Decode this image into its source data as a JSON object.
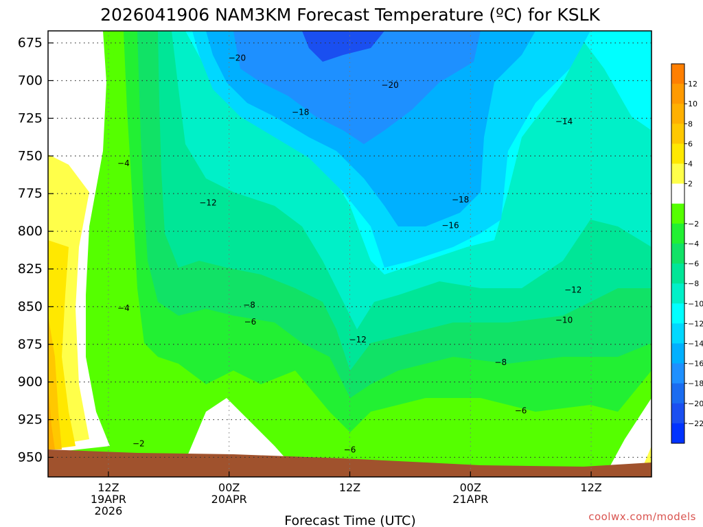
{
  "chart_data": {
    "type": "heatmap",
    "title": "2026041906 NAM3KM Forecast Temperature (ºC) for KSLK",
    "xlabel": "Forecast Time (UTC)",
    "ylabel": "",
    "y_axis": {
      "ticks": [
        "675",
        "700",
        "725",
        "750",
        "775",
        "800",
        "825",
        "850",
        "875",
        "900",
        "925",
        "950"
      ],
      "range": [
        963,
        667
      ],
      "inverted": true
    },
    "x_axis": {
      "ticks": [
        {
          "hour": 6,
          "lines": [
            "12Z",
            "19APR",
            "2026"
          ]
        },
        {
          "hour": 18,
          "lines": [
            "00Z",
            "20APR"
          ]
        },
        {
          "hour": 30,
          "lines": [
            "12Z"
          ]
        },
        {
          "hour": 42,
          "lines": [
            "00Z",
            "21APR"
          ]
        },
        {
          "hour": 54,
          "lines": [
            "12Z"
          ]
        }
      ],
      "range_hours": [
        0,
        60
      ]
    },
    "grid": true,
    "colorbar": {
      "labels": [
        "12",
        "10",
        "8",
        "6",
        "4",
        "2",
        "−2",
        "−4",
        "−6",
        "−8",
        "−10",
        "−12",
        "−14",
        "−16",
        "−18",
        "−20",
        "−22"
      ],
      "colors": [
        "#ff7f00",
        "#ff9a00",
        "#ffb000",
        "#ffc800",
        "#ffe800",
        "#ffff4a",
        "#ffffff",
        "#55ff00",
        "#22f033",
        "#11e266",
        "#00e697",
        "#00f0c8",
        "#00ffff",
        "#00d8ff",
        "#00b0ff",
        "#1e90ff",
        "#1a6cf0",
        "#1a4ff0",
        "#0033ff"
      ]
    },
    "contour_labels": [
      {
        "text": "−20",
        "hour": 18.8,
        "p": 685
      },
      {
        "text": "−20",
        "hour": 34.0,
        "p": 703
      },
      {
        "text": "−18",
        "hour": 25.1,
        "p": 721
      },
      {
        "text": "−18",
        "hour": 41.0,
        "p": 779
      },
      {
        "text": "−16",
        "hour": 40.0,
        "p": 796
      },
      {
        "text": "−14",
        "hour": 51.3,
        "p": 727
      },
      {
        "text": "−12",
        "hour": 15.9,
        "p": 781
      },
      {
        "text": "−12",
        "hour": 52.2,
        "p": 839
      },
      {
        "text": "−12",
        "hour": 30.8,
        "p": 872
      },
      {
        "text": "−10",
        "hour": 51.3,
        "p": 859
      },
      {
        "text": "−8",
        "hour": 20.0,
        "p": 849
      },
      {
        "text": "−8",
        "hour": 45.0,
        "p": 887
      },
      {
        "text": "−6",
        "hour": 20.1,
        "p": 860
      },
      {
        "text": "−6",
        "hour": 47.0,
        "p": 919
      },
      {
        "text": "−6",
        "hour": 30.0,
        "p": 945
      },
      {
        "text": "−4",
        "hour": 7.5,
        "p": 755
      },
      {
        "text": "−4",
        "hour": 7.5,
        "p": 851
      },
      {
        "text": "−2",
        "hour": 9.0,
        "p": 941
      }
    ]
  },
  "credit": "coolwx.com/models"
}
